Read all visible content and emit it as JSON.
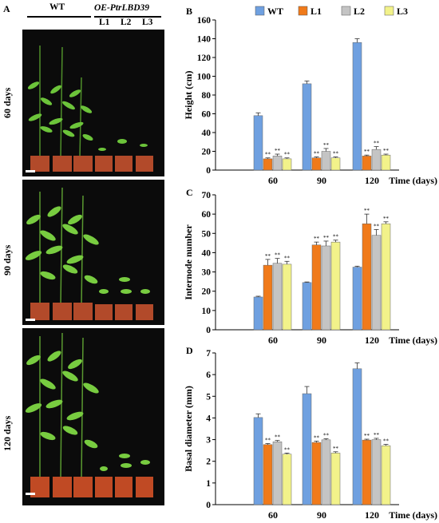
{
  "panels": {
    "a": "A",
    "b": "B",
    "c": "C",
    "d": "D"
  },
  "photo_header": {
    "wt": "WT",
    "oe": "OE-PtrLBD39",
    "lines": [
      "L1",
      "L2",
      "L3"
    ]
  },
  "photo_rows": [
    {
      "label": "60 days"
    },
    {
      "label": "90 days"
    },
    {
      "label": "120 days"
    }
  ],
  "legend": [
    "WT",
    "L1",
    "L2",
    "L3"
  ],
  "colors": {
    "WT": "#6fa0e0",
    "L1": "#f07a1a",
    "L2": "#c4c4c4",
    "L3": "#f2f28a"
  },
  "significance_mark": "**",
  "chart_data": [
    {
      "panel": "B",
      "type": "bar",
      "categories": [
        "60",
        "90",
        "120"
      ],
      "series": [
        {
          "name": "WT",
          "values": [
            58,
            92,
            136
          ],
          "errors": [
            3,
            3,
            4
          ]
        },
        {
          "name": "L1",
          "values": [
            12,
            13,
            15
          ],
          "errors": [
            1,
            1,
            1
          ]
        },
        {
          "name": "L2",
          "values": [
            15,
            20,
            22
          ],
          "errors": [
            2,
            3,
            3
          ]
        },
        {
          "name": "L3",
          "values": [
            12,
            13,
            16
          ],
          "errors": [
            1,
            1,
            1
          ]
        }
      ],
      "ylabel": "Height (cm)",
      "xlabel": "Time (days)",
      "ylim": [
        0,
        160
      ],
      "yticks": [
        0,
        20,
        40,
        60,
        80,
        100,
        120,
        140,
        160
      ],
      "significant": [
        "L1",
        "L2",
        "L3"
      ]
    },
    {
      "panel": "C",
      "type": "bar",
      "categories": [
        "60",
        "90",
        "120"
      ],
      "series": [
        {
          "name": "WT",
          "values": [
            17,
            24.5,
            32.5
          ],
          "errors": [
            0.4,
            0.3,
            0.5
          ]
        },
        {
          "name": "L1",
          "values": [
            33.5,
            44,
            55
          ],
          "errors": [
            3,
            1.5,
            5
          ]
        },
        {
          "name": "L2",
          "values": [
            34.5,
            43.5,
            49
          ],
          "errors": [
            2.5,
            2.5,
            3
          ]
        },
        {
          "name": "L3",
          "values": [
            34,
            45.5,
            55
          ],
          "errors": [
            1.5,
            1,
            1
          ]
        }
      ],
      "ylabel": "Internode number",
      "xlabel": "Time (days)",
      "ylim": [
        0,
        70
      ],
      "yticks": [
        0,
        10,
        20,
        30,
        40,
        50,
        60,
        70
      ],
      "significant": [
        "L1",
        "L2",
        "L3"
      ]
    },
    {
      "panel": "D",
      "type": "bar",
      "categories": [
        "60",
        "90",
        "120"
      ],
      "series": [
        {
          "name": "WT",
          "values": [
            4.02,
            5.12,
            6.27
          ],
          "errors": [
            0.17,
            0.33,
            0.27
          ]
        },
        {
          "name": "L1",
          "values": [
            2.77,
            2.87,
            2.98
          ],
          "errors": [
            0.05,
            0.06,
            0.04
          ]
        },
        {
          "name": "L2",
          "values": [
            2.9,
            2.99,
            3.0
          ],
          "errors": [
            0.06,
            0.05,
            0.06
          ]
        },
        {
          "name": "L3",
          "values": [
            2.33,
            2.38,
            2.72
          ],
          "errors": [
            0.05,
            0.06,
            0.06
          ]
        }
      ],
      "ylabel": "Basal diameter (mm)",
      "xlabel": "Time (days)",
      "ylim": [
        0,
        7
      ],
      "yticks": [
        0,
        1,
        2,
        3,
        4,
        5,
        6,
        7
      ],
      "significant": [
        "L1",
        "L2",
        "L3"
      ]
    }
  ]
}
